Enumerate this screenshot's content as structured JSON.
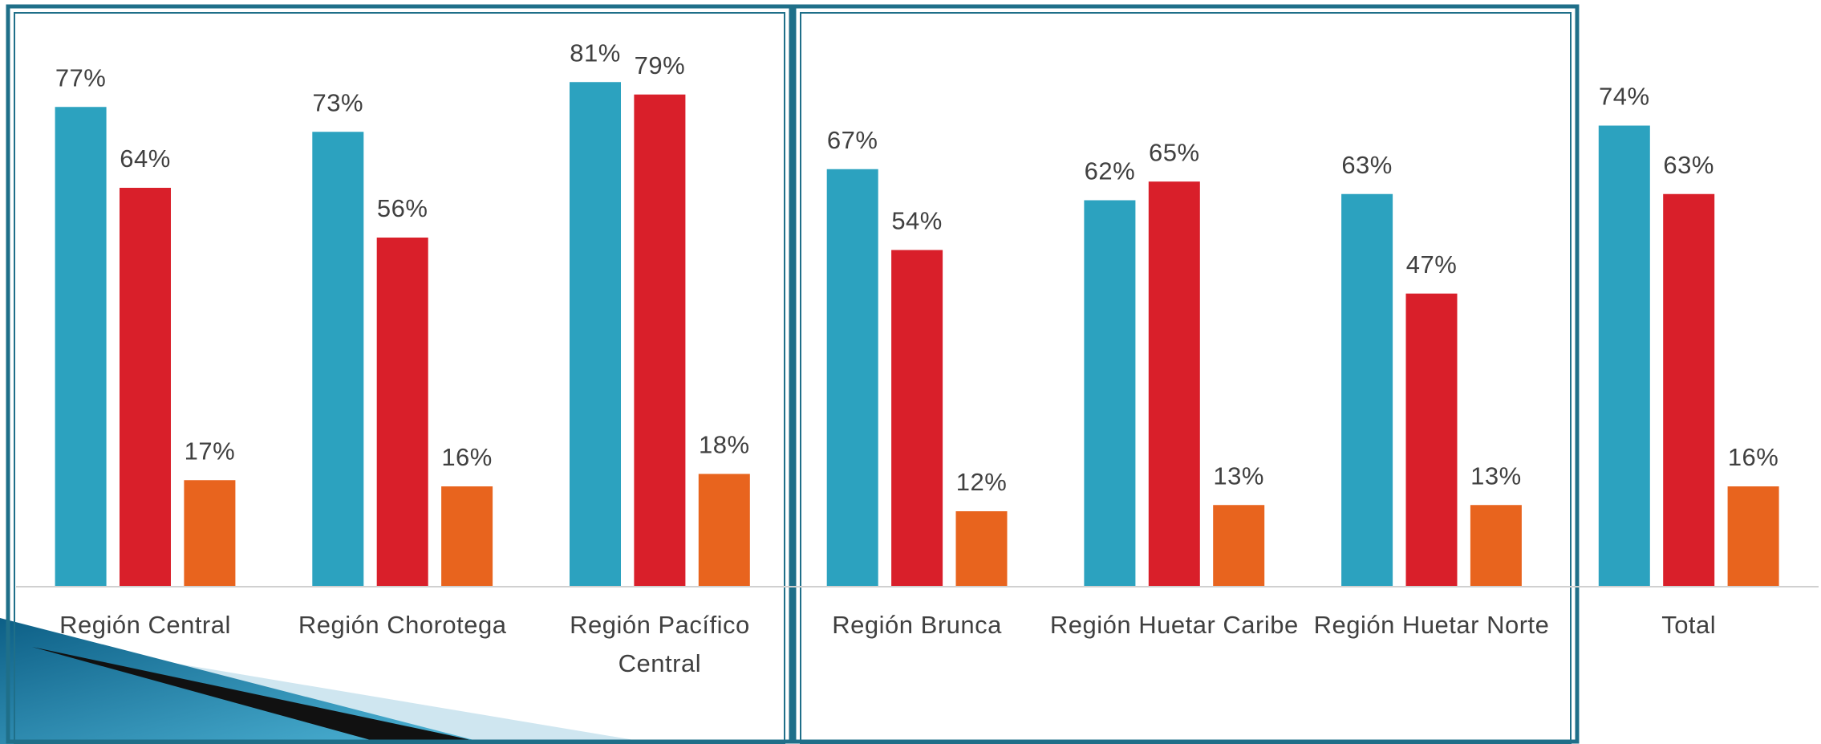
{
  "chart_data": {
    "type": "bar",
    "categories": [
      "Región Central",
      "Región Chorotega",
      "Región Pacífico Central",
      "Región Brunca",
      "Región Huetar Caribe",
      "Región Huetar Norte",
      "Total"
    ],
    "series": [
      {
        "color": "#2ca2bf",
        "values": [
          77,
          73,
          81,
          67,
          62,
          63,
          74
        ],
        "value_labels": [
          "77%",
          "73%",
          "81%",
          "67%",
          "62%",
          "63%",
          "74%"
        ]
      },
      {
        "color": "#d91f2a",
        "values": [
          64,
          56,
          79,
          54,
          65,
          47,
          63
        ],
        "value_labels": [
          "64%",
          "56%",
          "79%",
          "54%",
          "65%",
          "47%",
          "63%"
        ]
      },
      {
        "color": "#e8641e",
        "values": [
          17,
          16,
          18,
          12,
          13,
          13,
          16
        ],
        "value_labels": [
          "17%",
          "16%",
          "18%",
          "12%",
          "13%",
          "13%",
          "16%"
        ]
      }
    ]
  }
}
